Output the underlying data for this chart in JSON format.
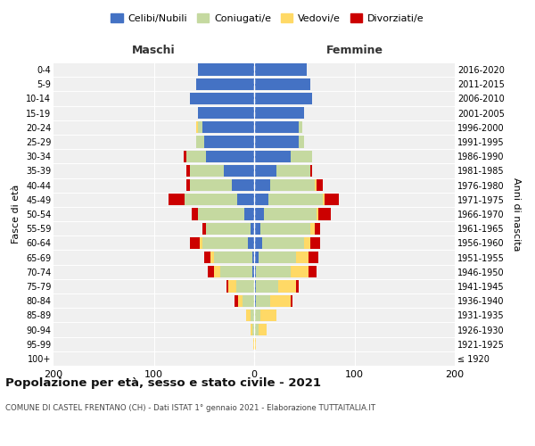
{
  "age_groups": [
    "100+",
    "95-99",
    "90-94",
    "85-89",
    "80-84",
    "75-79",
    "70-74",
    "65-69",
    "60-64",
    "55-59",
    "50-54",
    "45-49",
    "40-44",
    "35-39",
    "30-34",
    "25-29",
    "20-24",
    "15-19",
    "10-14",
    "5-9",
    "0-4"
  ],
  "birth_years": [
    "≤ 1920",
    "1921-1925",
    "1926-1930",
    "1931-1935",
    "1936-1940",
    "1941-1945",
    "1946-1950",
    "1951-1955",
    "1956-1960",
    "1961-1965",
    "1966-1970",
    "1971-1975",
    "1976-1980",
    "1981-1985",
    "1986-1990",
    "1991-1995",
    "1996-2000",
    "2001-2005",
    "2006-2010",
    "2011-2015",
    "2016-2020"
  ],
  "maschi": {
    "celibi": [
      0,
      0,
      0,
      0,
      0,
      0,
      2,
      2,
      6,
      4,
      10,
      17,
      22,
      30,
      48,
      50,
      52,
      56,
      64,
      58,
      56
    ],
    "coniugati": [
      0,
      0,
      2,
      4,
      12,
      18,
      32,
      38,
      46,
      44,
      46,
      52,
      42,
      34,
      20,
      8,
      4,
      0,
      0,
      0,
      0
    ],
    "vedovi": [
      0,
      1,
      2,
      4,
      4,
      8,
      6,
      4,
      2,
      0,
      0,
      0,
      0,
      0,
      0,
      0,
      2,
      0,
      0,
      0,
      0
    ],
    "divorziati": [
      0,
      0,
      0,
      0,
      4,
      2,
      6,
      6,
      10,
      4,
      6,
      16,
      4,
      4,
      2,
      0,
      0,
      0,
      0,
      0,
      0
    ]
  },
  "femmine": {
    "nubili": [
      0,
      0,
      0,
      0,
      2,
      2,
      2,
      4,
      8,
      6,
      10,
      14,
      16,
      22,
      36,
      44,
      44,
      50,
      58,
      56,
      52
    ],
    "coniugate": [
      0,
      0,
      4,
      6,
      14,
      22,
      34,
      38,
      42,
      50,
      52,
      54,
      44,
      34,
      22,
      6,
      4,
      0,
      0,
      0,
      0
    ],
    "vedove": [
      1,
      2,
      8,
      16,
      20,
      18,
      18,
      12,
      6,
      4,
      2,
      2,
      2,
      0,
      0,
      0,
      0,
      0,
      0,
      0,
      0
    ],
    "divorziate": [
      0,
      0,
      0,
      0,
      2,
      2,
      8,
      10,
      10,
      6,
      12,
      14,
      6,
      2,
      0,
      0,
      0,
      0,
      0,
      0,
      0
    ]
  },
  "colors": {
    "celibi_nubili": "#4472c4",
    "coniugati": "#c5d9a0",
    "vedovi": "#ffd966",
    "divorziati": "#cc0000"
  },
  "xlim": 200,
  "title": "Popolazione per età, sesso e stato civile - 2021",
  "subtitle": "COMUNE DI CASTEL FRENTANO (CH) - Dati ISTAT 1° gennaio 2021 - Elaborazione TUTTAITALIA.IT",
  "ylabel": "Fasce di età",
  "ylabel_right": "Anni di nascita",
  "maschi_label": "Maschi",
  "femmine_label": "Femmine",
  "legend_labels": [
    "Celibi/Nubili",
    "Coniugati/e",
    "Vedovi/e",
    "Divorziati/e"
  ],
  "bg_color": "#f0f0f0"
}
